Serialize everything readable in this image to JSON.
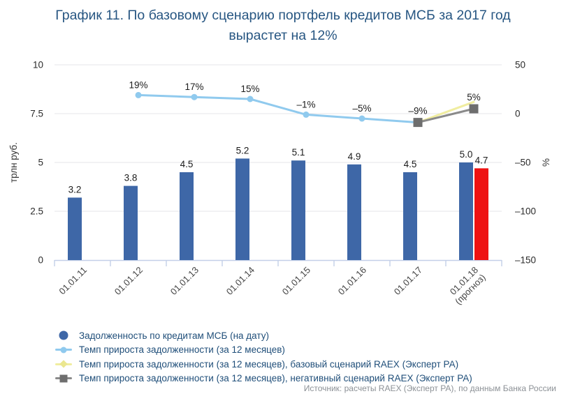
{
  "title": {
    "line1": "График 11. По базовому сценарию портфель кредитов МСБ за 2017 год",
    "line2": "вырастет на 12%",
    "color": "#275682"
  },
  "source": "Источник: расчеты RAEX (Эксперт РА), по данным Банка России",
  "colors": {
    "bar_blue": "#3E67A7",
    "bar_red": "#EE1212",
    "line_light_blue": "#90CAEE",
    "line_yellow": "#F0EDA0",
    "line_gray": "#8A8A8A",
    "marker_gray_square": "#6E6E6E",
    "title_text": "#275682",
    "legend_text": "#1F4E79",
    "axis_text": "#2B2B2B",
    "data_label_text": "#1C1C1C",
    "grid_line": "#E5E5E9",
    "axis_line": "#C3CFE8",
    "source_text": "#8C9196"
  },
  "legend": {
    "items": [
      {
        "label": "Задолженность по кредитам МСБ (на дату)",
        "marker": "circle",
        "color": "#3E67A7"
      },
      {
        "label": "Темп прироста задолженности (за 12 месяцев)",
        "marker": "line-circle",
        "color": "#90CAEE"
      },
      {
        "label": "Темп прироста задолженности (за 12 месяцев), базовый сценарий RAEX (Эксперт РА)",
        "marker": "line-diamond",
        "color": "#F0EDA0"
      },
      {
        "label": "Темп прироста задолженности (за 12 месяцев), негативный сценарий RAEX (Эксперт РА)",
        "marker": "line-square",
        "color": "#8A8A8A"
      }
    ]
  },
  "chart_data": {
    "type": "combo bar+line, dual axis",
    "categories": [
      "01.01.11",
      "01.01.12",
      "01.01.13",
      "01.01.14",
      "01.01.15",
      "01.01.16",
      "01.01.17",
      "01.01.18 (прогноз)"
    ],
    "y_left": {
      "title": "трлн руб.",
      "ticks": [
        0,
        2.5,
        5,
        7.5,
        10
      ],
      "tick_labels": [
        "0",
        "2.5",
        "5",
        "7.5",
        "10"
      ],
      "range": [
        0,
        10
      ]
    },
    "y_right": {
      "title": "%",
      "ticks": [
        -150,
        -100,
        -50,
        0,
        50
      ],
      "tick_labels": [
        "–150",
        "–100",
        "–50",
        "0",
        "50"
      ],
      "range": [
        -150,
        50
      ]
    },
    "grid": true,
    "legend_position": "bottom-left",
    "series": [
      {
        "name": "Задолженность по кредитам МСБ (на дату)",
        "type": "bar",
        "axis": "left",
        "color": "#3E67A7",
        "values": [
          3.2,
          3.8,
          4.5,
          5.2,
          5.1,
          4.9,
          4.5,
          5.0
        ],
        "labels": [
          "3.2",
          "3.8",
          "4.5",
          "5.2",
          "5.1",
          "4.9",
          "4.5",
          "5.0"
        ]
      },
      {
        "name": "",
        "type": "bar",
        "axis": "left",
        "color": "#EE1212",
        "values": [
          null,
          null,
          null,
          null,
          null,
          null,
          null,
          4.7
        ],
        "labels": [
          null,
          null,
          null,
          null,
          null,
          null,
          null,
          "4.7"
        ]
      },
      {
        "name": "Темп прироста задолженности (за 12 месяцев)",
        "type": "line",
        "axis": "right",
        "color": "#90CAEE",
        "marker": "circle",
        "values": [
          null,
          19,
          17,
          15,
          -1,
          -5,
          -9,
          null
        ],
        "labels": [
          null,
          "19%",
          "17%",
          "15%",
          "–1%",
          "–5%",
          "–9%",
          null
        ]
      },
      {
        "name": "Темп прироста задолженности (за 12 месяцев), базовый сценарий RAEX (Эксперт РА)",
        "type": "line",
        "axis": "right",
        "color": "#F0EDA0",
        "marker": "none",
        "values": [
          null,
          null,
          null,
          null,
          null,
          null,
          -9,
          12
        ],
        "labels": [
          null,
          null,
          null,
          null,
          null,
          null,
          null,
          null
        ]
      },
      {
        "name": "Темп прироста задолженности (за 12 месяцев), негативный сценарий RAEX (Эксперт РА)",
        "type": "line",
        "axis": "right",
        "color": "#8A8A8A",
        "marker": "square",
        "marker_color": "#6E6E6E",
        "values": [
          null,
          null,
          null,
          null,
          null,
          null,
          -9,
          5
        ],
        "labels": [
          null,
          null,
          null,
          null,
          null,
          null,
          null,
          "5%"
        ]
      }
    ]
  }
}
